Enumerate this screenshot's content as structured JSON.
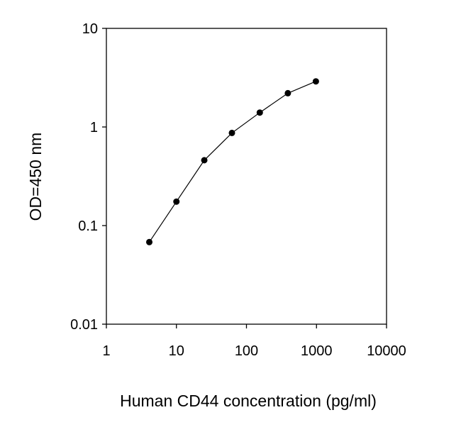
{
  "chart_data": {
    "type": "line",
    "x_scale": "log",
    "y_scale": "log",
    "xlabel": "Human CD44 concentration (pg/ml)",
    "ylabel": "OD=450 nm",
    "xlim": [
      1,
      10000
    ],
    "ylim": [
      0.01,
      10
    ],
    "x_ticks": [
      1,
      10,
      100,
      1000,
      10000
    ],
    "x_tick_labels": [
      "1",
      "10",
      "100",
      "1000",
      "10000"
    ],
    "y_ticks": [
      0.01,
      0.1,
      1,
      10
    ],
    "y_tick_labels": [
      "0.01",
      "0.1",
      "1",
      "10"
    ],
    "grid": false,
    "series": [
      {
        "x": [
          4.1,
          10,
          25,
          62,
          155,
          390,
          980
        ],
        "y": [
          0.068,
          0.175,
          0.46,
          0.87,
          1.4,
          2.2,
          2.9
        ],
        "marker": "circle",
        "color": "#000000"
      }
    ]
  }
}
